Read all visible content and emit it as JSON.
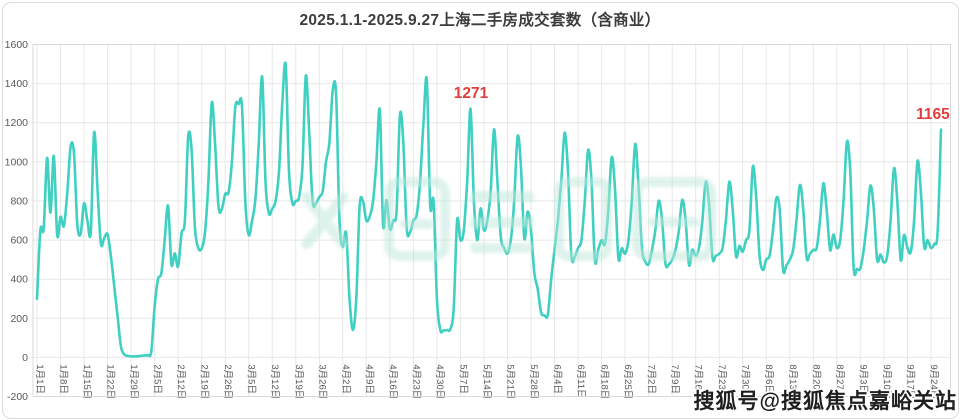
{
  "footer": {
    "text": "搜狐号@搜狐焦点嘉峪关站"
  },
  "watermark": {
    "color": "#bfe7db"
  },
  "chart_data": {
    "type": "line",
    "title": "2025.1.1-2025.9.27上海二手房成交套数（含商业）",
    "xlabel": "",
    "ylabel": "",
    "ylim": [
      -200,
      1600
    ],
    "grid": true,
    "legend": "none",
    "line_color": "#3fd0c1",
    "grid_color": "#e7e7e7",
    "tick_color": "#595959",
    "annotation_color": "#e23c3c",
    "x_unit": "day",
    "x_tick_interval_days": 7,
    "x_tick_labels": [
      "1月1日",
      "1月8日",
      "1月15日",
      "1月22日",
      "1月29日",
      "2月5日",
      "2月12日",
      "2月19日",
      "2月26日",
      "3月5日",
      "3月12日",
      "3月19日",
      "3月26日",
      "4月2日",
      "4月9日",
      "4月16日",
      "4月23日",
      "4月30日",
      "5月7日",
      "5月14日",
      "5月21日",
      "5月28日",
      "6月4日",
      "6月11日",
      "6月18日",
      "6月25日",
      "7月2日",
      "7月9日",
      "7月16日",
      "7月23日",
      "7月30日",
      "8月6日",
      "8月13日",
      "8月20日",
      "8月27日",
      "9月3日",
      "9月10日",
      "9月17日",
      "9月24日"
    ],
    "y_ticks": [
      1600,
      1400,
      1200,
      1000,
      800,
      600,
      400,
      200,
      0,
      -200
    ],
    "values": [
      300,
      650,
      660,
      1020,
      740,
      1030,
      626,
      719,
      672,
      838,
      1077,
      1045,
      680,
      634,
      788,
      700,
      642,
      1150,
      860,
      583,
      610,
      630,
      515,
      361,
      205,
      54,
      15,
      8,
      5,
      5,
      6,
      8,
      10,
      12,
      30,
      259,
      400,
      430,
      600,
      775,
      477,
      532,
      465,
      634,
      700,
      1128,
      1060,
      665,
      560,
      557,
      640,
      900,
      1302,
      1090,
      770,
      760,
      835,
      845,
      1000,
      1280,
      1295,
      1285,
      790,
      626,
      700,
      810,
      1100,
      1435,
      900,
      737,
      760,
      800,
      950,
      1300,
      1495,
      950,
      788,
      800,
      820,
      980,
      1440,
      1150,
      800,
      788,
      820,
      850,
      1000,
      1100,
      1365,
      1345,
      700,
      566,
      634,
      300,
      140,
      300,
      770,
      798,
      700,
      720,
      800,
      1000,
      1265,
      677,
      804,
      656,
      700,
      750,
      1239,
      1100,
      662,
      640,
      700,
      730,
      900,
      1200,
      1418,
      779,
      797,
      300,
      140,
      138,
      140,
      145,
      250,
      700,
      600,
      650,
      900,
      1271,
      800,
      600,
      762,
      650,
      700,
      850,
      1166,
      900,
      617,
      560,
      531,
      600,
      800,
      1129,
      980,
      609,
      745,
      650,
      430,
      350,
      230,
      215,
      218,
      400,
      550,
      700,
      900,
      1149,
      950,
      523,
      515,
      560,
      600,
      800,
      1060,
      900,
      498,
      550,
      600,
      580,
      750,
      1023,
      860,
      508,
      558,
      530,
      600,
      800,
      1091,
      880,
      560,
      490,
      477,
      550,
      650,
      801,
      700,
      480,
      475,
      500,
      550,
      650,
      805,
      700,
      473,
      550,
      520,
      560,
      700,
      898,
      780,
      510,
      520,
      530,
      560,
      700,
      898,
      760,
      518,
      570,
      540,
      600,
      650,
      975,
      820,
      525,
      447,
      500,
      520,
      650,
      813,
      755,
      450,
      470,
      500,
      550,
      700,
      881,
      760,
      510,
      530,
      550,
      560,
      700,
      890,
      750,
      549,
      629,
      560,
      600,
      800,
      1103,
      950,
      460,
      452,
      455,
      550,
      700,
      878,
      760,
      500,
      526,
      485,
      520,
      700,
      967,
      800,
      498,
      626,
      560,
      540,
      700,
      1004,
      850,
      566,
      600,
      560,
      580,
      640,
      1165
    ],
    "annotations": [
      {
        "text": "1271",
        "day_index": 129,
        "value": 1271
      },
      {
        "text": "1165",
        "day_index": 269,
        "value": 1165
      }
    ]
  }
}
